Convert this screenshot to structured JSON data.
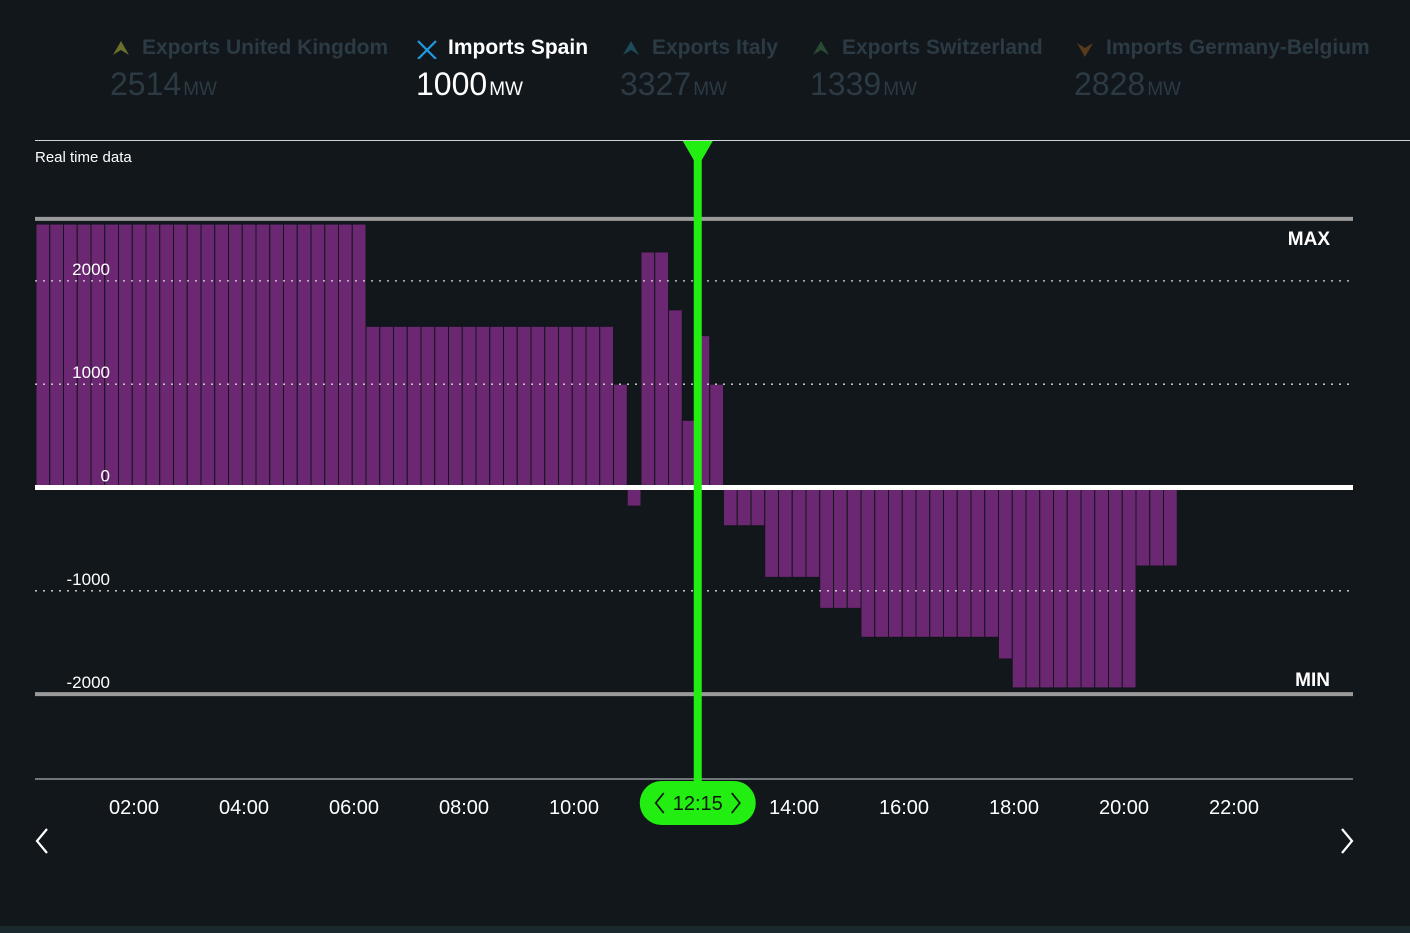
{
  "legend": [
    {
      "label": "Exports United Kingdom",
      "value": "2514",
      "unit": "MW",
      "direction": "up",
      "active": false,
      "icon": "arrow-up-icon",
      "icon_color": "#6a6f2a"
    },
    {
      "label": "Imports Spain",
      "value": "1000",
      "unit": "MW",
      "direction": "selected",
      "active": true,
      "icon": "cross-icon",
      "icon_color": "#1e9be0"
    },
    {
      "label": "Exports Italy",
      "value": "3327",
      "unit": "MW",
      "direction": "up",
      "active": false,
      "icon": "arrow-up-icon",
      "icon_color": "#1e4a5a"
    },
    {
      "label": "Exports Switzerland",
      "value": "1339",
      "unit": "MW",
      "direction": "up",
      "active": false,
      "icon": "arrow-up-icon",
      "icon_color": "#2a4a34"
    },
    {
      "label": "Imports Germany-Belgium",
      "value": "2828",
      "unit": "MW",
      "direction": "down",
      "active": false,
      "icon": "arrow-down-icon",
      "icon_color": "#5a3a1e"
    }
  ],
  "panel_title": "Real time data",
  "cursor_time": "12:15",
  "colors": {
    "bar": "#6b2771",
    "bar_edge": "#12171c",
    "cursor": "#22ee11",
    "zero_line": "#ffffff",
    "limit_line": "#9a9a9a",
    "background": "#12171c"
  },
  "chart_data": {
    "type": "bar",
    "x_unit": "15 min interval (hour of day)",
    "xlim": [
      0,
      24
    ],
    "ylim": [
      -2800,
      2550
    ],
    "yticks": [
      2000,
      1000,
      0,
      -1000,
      -2000
    ],
    "xticks": [
      "02:00",
      "04:00",
      "06:00",
      "08:00",
      "10:00",
      "14:00",
      "16:00",
      "18:00",
      "20:00",
      "22:00"
    ],
    "max_label": "MAX",
    "min_label": "MIN",
    "max_value": 2600,
    "min_value": -2000,
    "cursor_hour": 12.25,
    "start_hour": 0,
    "step_hours": 0.25,
    "values": [
      2550,
      2550,
      2550,
      2550,
      2550,
      2550,
      2550,
      2550,
      2550,
      2550,
      2550,
      2550,
      2550,
      2550,
      2550,
      2550,
      2550,
      2550,
      2550,
      2550,
      2550,
      2550,
      2550,
      2550,
      1560,
      1560,
      1560,
      1560,
      1560,
      1560,
      1560,
      1560,
      1560,
      1560,
      1560,
      1560,
      1560,
      1560,
      1560,
      1560,
      1560,
      1560,
      1000,
      -180,
      2280,
      2280,
      1720,
      650,
      1470,
      1000,
      -370,
      -370,
      -370,
      -870,
      -870,
      -870,
      -870,
      -1170,
      -1170,
      -1170,
      -1450,
      -1450,
      -1450,
      -1450,
      -1450,
      -1450,
      -1450,
      -1450,
      -1450,
      -1450,
      -1660,
      -1940,
      -1940,
      -1940,
      -1940,
      -1940,
      -1940,
      -1940,
      -1940,
      -1940,
      -760,
      -760,
      -760
    ]
  }
}
